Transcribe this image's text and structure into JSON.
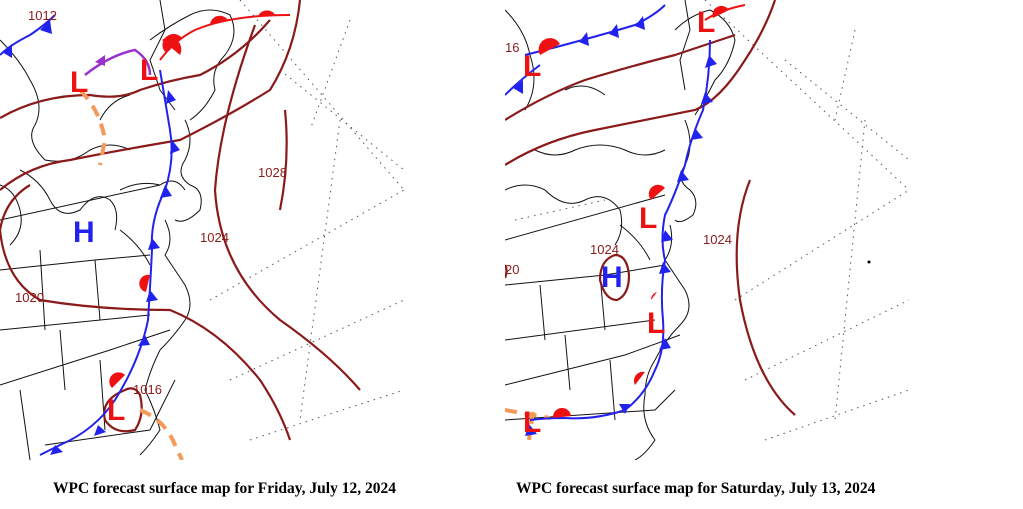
{
  "maps": [
    {
      "caption": "WPC forecast surface map for Friday, July 12, 2024",
      "isobar_labels": [
        "1012",
        "1028",
        "1024",
        "1020",
        "1016"
      ],
      "pressure_centers": [
        "L",
        "L",
        "H",
        "L"
      ]
    },
    {
      "caption": "WPC forecast surface map for Saturday, July 13, 2024",
      "isobar_labels": [
        "16",
        "1024",
        "1024",
        "20"
      ],
      "pressure_centers": [
        "L",
        "L",
        "L",
        "H",
        "L",
        "L"
      ]
    }
  ],
  "colors": {
    "isobar": "#8b1a1a",
    "cold_front": "#2222ee",
    "warm_front": "#ee1111",
    "low": "#ee1111",
    "high": "#2222ee",
    "trough": "#f39a5a",
    "occluded": "#9933cc",
    "boundaries": "#111111",
    "grid": "#555555"
  }
}
